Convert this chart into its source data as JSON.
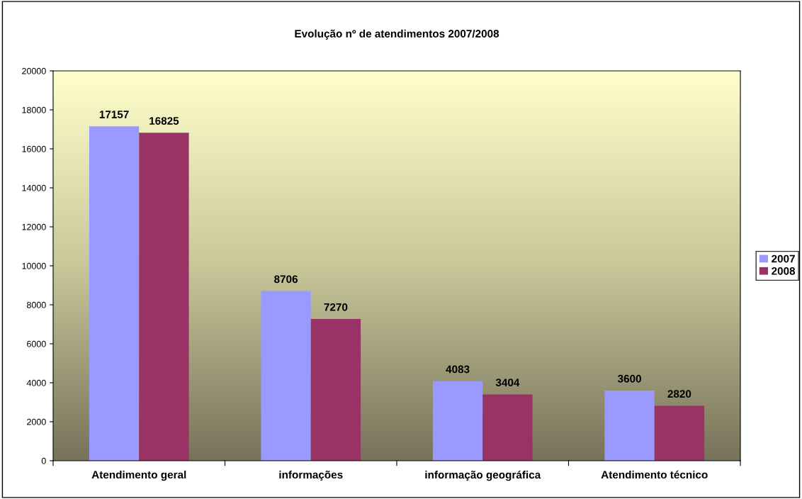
{
  "chart_data": {
    "type": "bar",
    "title": "Evolução nº de atendimentos 2007/2008",
    "categories": [
      "Atendimento geral",
      "informações",
      "informação geográfica",
      "Atendimento técnico"
    ],
    "series": [
      {
        "name": "2007",
        "color": "#9999ff",
        "values": [
          17157,
          8706,
          4083,
          3600
        ]
      },
      {
        "name": "2008",
        "color": "#993366",
        "values": [
          16825,
          7270,
          3404,
          2820
        ]
      }
    ],
    "ylim": [
      0,
      20000
    ],
    "yticks": [
      0,
      2000,
      4000,
      6000,
      8000,
      10000,
      12000,
      14000,
      16000,
      18000,
      20000
    ],
    "data_labels": true,
    "legend": "right",
    "grid": false
  }
}
